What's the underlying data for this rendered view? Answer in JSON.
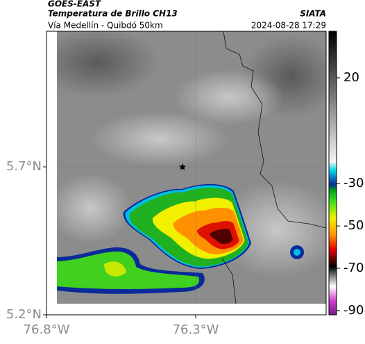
{
  "header": {
    "source": "GOES-EAST",
    "title": "Temperatura de Brillo CH13",
    "brand": "SIATA",
    "subtitle": "Vía Medellín - Quibdó 50km",
    "timestamp": "2024-08-28 17:29"
  },
  "map": {
    "xlim": [
      -76.8,
      -75.863
    ],
    "ylim": [
      5.2,
      6.158
    ],
    "xticks": [
      {
        "value": -76.8,
        "label": "76.8°W"
      },
      {
        "value": -76.3,
        "label": "76.3°W"
      }
    ],
    "yticks": [
      {
        "value": 5.2,
        "label": "5.2°N"
      },
      {
        "value": 5.7,
        "label": "5.7°N"
      }
    ]
  },
  "colorbar": {
    "lim": [
      -92,
      42
    ],
    "ticks": [
      20,
      -30,
      -50,
      -70,
      -90
    ]
  }
}
